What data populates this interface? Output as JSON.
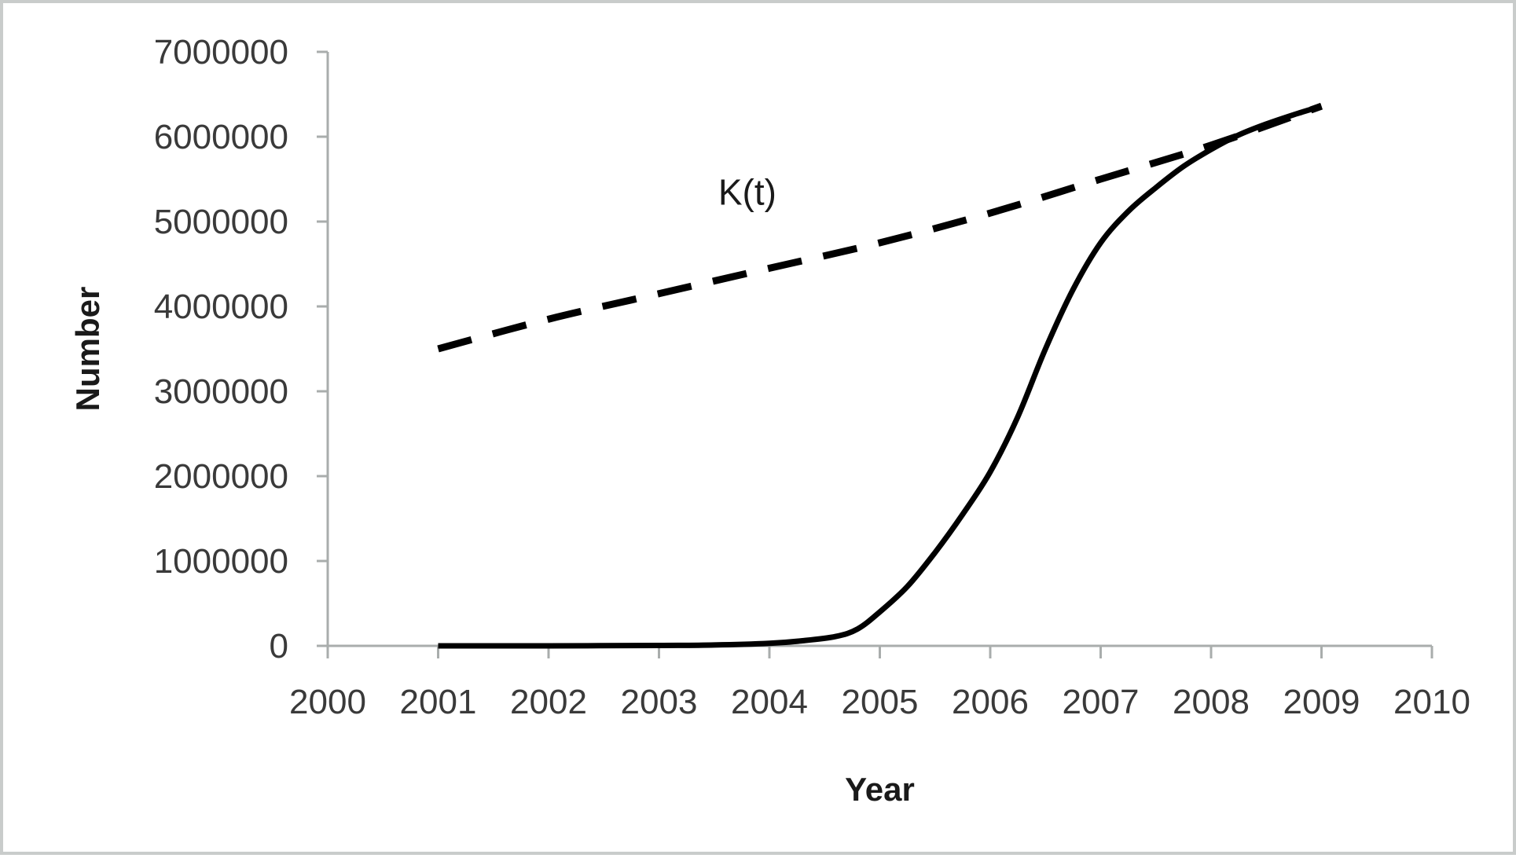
{
  "chart_data": {
    "type": "line",
    "title": "",
    "xlabel": "Year",
    "ylabel": "Number",
    "xlim": [
      2000,
      2010
    ],
    "ylim": [
      0,
      7000000
    ],
    "x_ticks": [
      "2000",
      "2001",
      "2002",
      "2003",
      "2004",
      "2005",
      "2006",
      "2007",
      "2008",
      "2009",
      "2010"
    ],
    "y_ticks": [
      "0",
      "1000000",
      "2000000",
      "3000000",
      "4000000",
      "5000000",
      "6000000",
      "7000000"
    ],
    "grid": false,
    "legend": "none",
    "annotations": [
      {
        "text": "K(t)",
        "x": 2003.8,
        "y": 5200000
      }
    ],
    "series": [
      {
        "style": "solid",
        "color": "#000000",
        "x": [
          2001,
          2002,
          2003,
          2003.5,
          2004,
          2004.3,
          2004.6,
          2004.8,
          2005,
          2005.25,
          2005.5,
          2005.75,
          2006,
          2006.25,
          2006.5,
          2006.75,
          2007,
          2007.25,
          2007.5,
          2007.75,
          2008,
          2008.25,
          2008.5,
          2008.75,
          2009
        ],
        "y": [
          0,
          0,
          5000,
          10000,
          30000,
          60000,
          110000,
          200000,
          400000,
          700000,
          1100000,
          1550000,
          2050000,
          2700000,
          3500000,
          4200000,
          4750000,
          5120000,
          5400000,
          5650000,
          5850000,
          6020000,
          6150000,
          6260000,
          6360000
        ]
      },
      {
        "name": "K(t)",
        "style": "dashed",
        "color": "#000000",
        "x": [
          2001,
          2002,
          2003,
          2004,
          2005,
          2006,
          2007,
          2008,
          2009
        ],
        "y": [
          3500000,
          3850000,
          4150000,
          4450000,
          4750000,
          5100000,
          5500000,
          5900000,
          6360000
        ]
      }
    ]
  }
}
